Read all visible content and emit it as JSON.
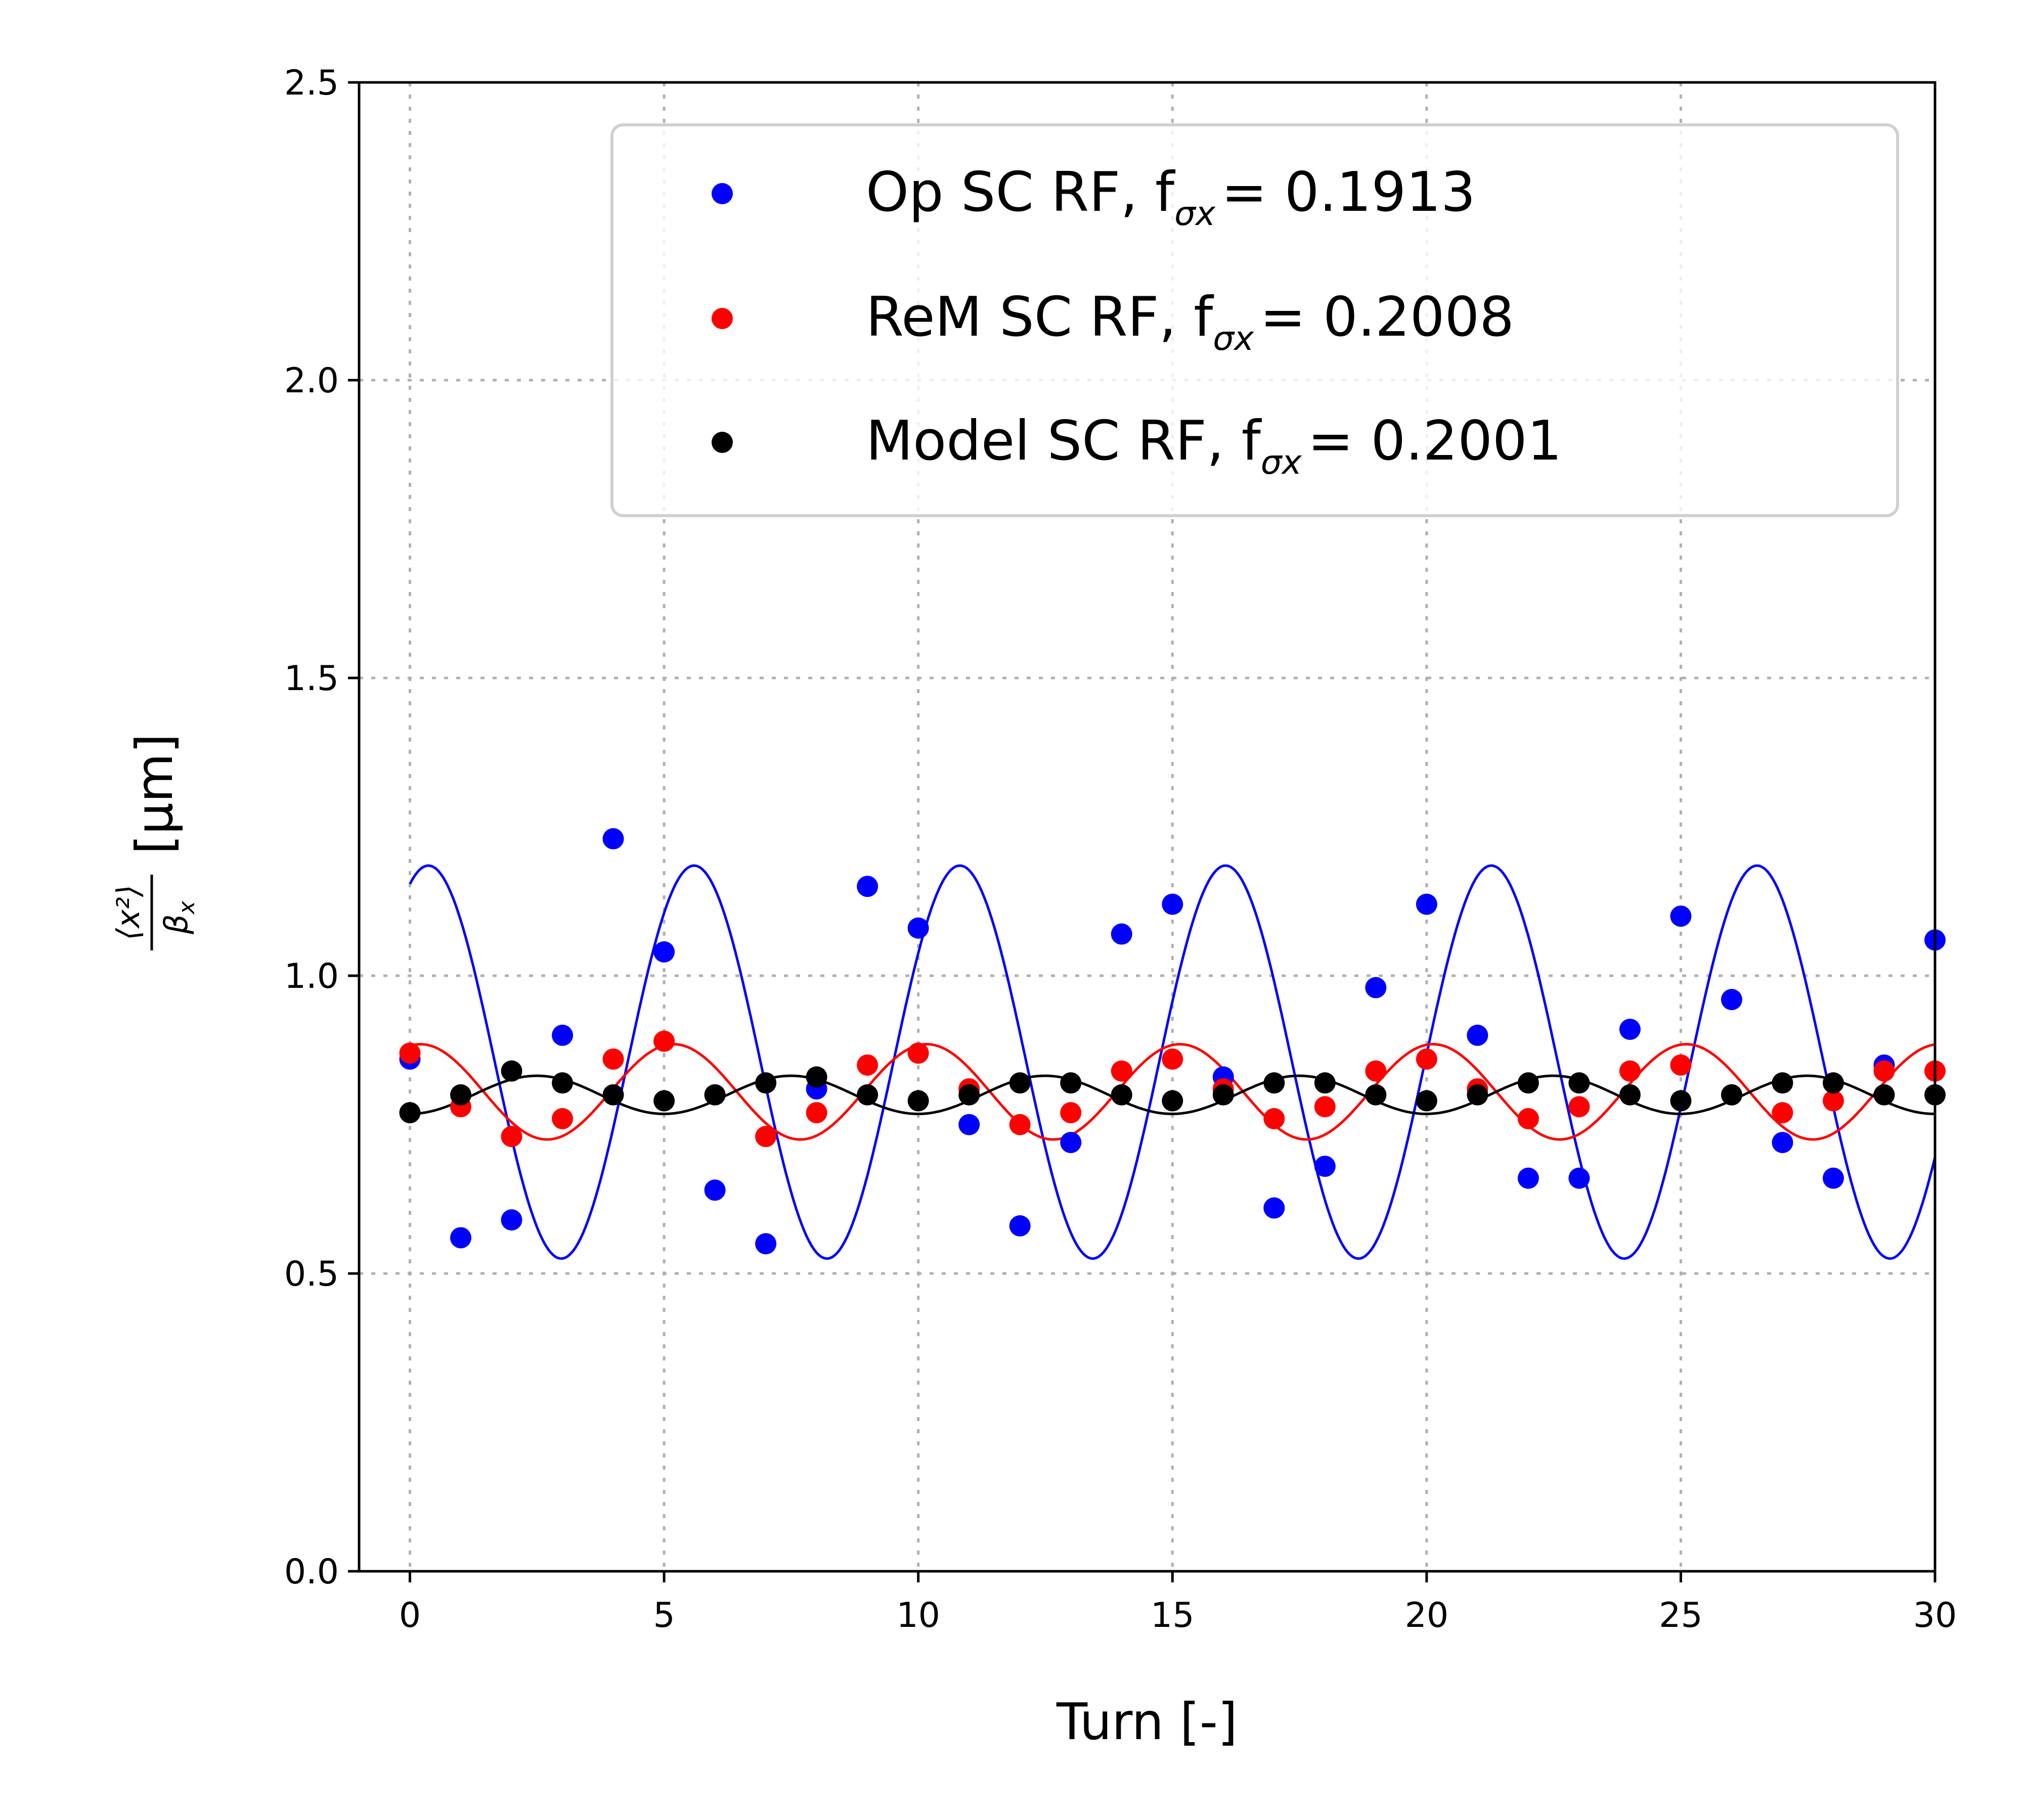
{
  "chart_data": {
    "type": "scatter",
    "xlabel": "Turn [-]",
    "ylabel_fraction_num": "⟨x²⟩",
    "ylabel_fraction_den": "β",
    "ylabel_fraction_den_sub": "x",
    "ylabel_unit": "[μm]",
    "xlim": [
      -1,
      30
    ],
    "ylim": [
      0,
      2.5
    ],
    "xticks": [
      0,
      5,
      10,
      15,
      20,
      25,
      30
    ],
    "yticks": [
      0.0,
      0.5,
      1.0,
      1.5,
      2.0,
      2.5
    ],
    "xtick_labels": [
      "0",
      "5",
      "10",
      "15",
      "20",
      "25",
      "30"
    ],
    "ytick_labels": [
      "0.0",
      "0.5",
      "1.0",
      "1.5",
      "2.0",
      "2.5"
    ],
    "grid": true,
    "legend_position": "top-right",
    "series": [
      {
        "name": "Op SC RF",
        "legend_prefix": "Op SC RF, f",
        "legend_sub": "σx",
        "legend_value": "= 0.1913",
        "color": "#0000ff",
        "x": [
          0,
          1,
          2,
          3,
          4,
          5,
          6,
          7,
          8,
          9,
          10,
          11,
          12,
          13,
          14,
          15,
          16,
          17,
          18,
          19,
          20,
          21,
          22,
          23,
          24,
          25,
          26,
          27,
          28,
          29,
          30
        ],
        "y": [
          0.86,
          0.56,
          0.59,
          0.9,
          1.23,
          1.04,
          0.64,
          0.55,
          0.81,
          1.15,
          1.08,
          0.75,
          0.58,
          0.72,
          1.07,
          1.12,
          0.83,
          0.61,
          0.68,
          0.98,
          1.12,
          0.9,
          0.66,
          0.66,
          0.91,
          1.1,
          0.96,
          0.72,
          0.66,
          0.85,
          1.06
        ],
        "fit": {
          "offset": 0.855,
          "amplitude": 0.33,
          "frequency": 0.1913,
          "phase_deg": 65
        }
      },
      {
        "name": "ReM SC RF",
        "legend_prefix": "ReM SC RF, f",
        "legend_sub": "σx",
        "legend_value": "= 0.2008",
        "color": "#ff0000",
        "x": [
          0,
          1,
          2,
          3,
          4,
          5,
          6,
          7,
          8,
          9,
          10,
          11,
          12,
          13,
          14,
          15,
          16,
          17,
          18,
          19,
          20,
          21,
          22,
          23,
          24,
          25,
          26,
          27,
          28,
          29,
          30
        ],
        "y": [
          0.87,
          0.78,
          0.73,
          0.76,
          0.86,
          0.89,
          0.8,
          0.73,
          0.77,
          0.85,
          0.87,
          0.81,
          0.75,
          0.77,
          0.84,
          0.86,
          0.81,
          0.76,
          0.78,
          0.84,
          0.86,
          0.81,
          0.76,
          0.78,
          0.84,
          0.85,
          0.8,
          0.77,
          0.79,
          0.84,
          0.84
        ],
        "fit": {
          "offset": 0.805,
          "amplitude": 0.08,
          "frequency": 0.2008,
          "phase_deg": 75
        }
      },
      {
        "name": "Model SC RF",
        "legend_prefix": "Model SC RF, f",
        "legend_sub": "σx",
        "legend_value": "= 0.2001",
        "color": "#000000",
        "x": [
          0,
          1,
          2,
          3,
          4,
          5,
          6,
          7,
          8,
          9,
          10,
          11,
          12,
          13,
          14,
          15,
          16,
          17,
          18,
          19,
          20,
          21,
          22,
          23,
          24,
          25,
          26,
          27,
          28,
          29,
          30
        ],
        "y": [
          0.77,
          0.8,
          0.84,
          0.82,
          0.8,
          0.79,
          0.8,
          0.82,
          0.83,
          0.8,
          0.79,
          0.8,
          0.82,
          0.82,
          0.8,
          0.79,
          0.8,
          0.82,
          0.82,
          0.8,
          0.79,
          0.8,
          0.82,
          0.82,
          0.8,
          0.79,
          0.8,
          0.82,
          0.82,
          0.8,
          0.8
        ],
        "fit": {
          "offset": 0.8,
          "amplitude": 0.032,
          "frequency": 0.2001,
          "phase_deg": -90
        }
      }
    ]
  }
}
